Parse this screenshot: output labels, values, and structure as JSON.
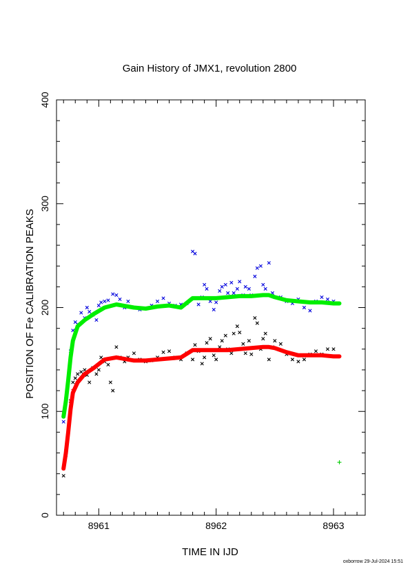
{
  "chart_data": {
    "type": "scatter",
    "title": "Gain History of JMX1, revolution 2800",
    "xlabel": "TIME IN IJD",
    "ylabel": "POSITION OF Fe CALIBRATION PEAKS",
    "xlim": [
      8960.64,
      8963.27
    ],
    "ylim": [
      0,
      400
    ],
    "xticks": [
      8961,
      8962,
      8963
    ],
    "yticks": [
      0,
      100,
      200,
      300,
      400
    ],
    "grid": false,
    "footer": "oxborrow 29-Jul-2024 15:51",
    "series": [
      {
        "kind": "smoothed-line",
        "color": "#00ee00",
        "x": [
          8960.7,
          8960.72,
          8960.74,
          8960.76,
          8960.78,
          8960.82,
          8960.88,
          8960.96,
          8961.05,
          8961.15,
          8961.2,
          8961.3,
          8961.4,
          8961.5,
          8961.6,
          8961.7,
          8961.8,
          8961.9,
          8962.0,
          8962.1,
          8962.2,
          8962.3,
          8962.4,
          8962.45,
          8962.5,
          8962.6,
          8962.7,
          8962.8,
          8962.9,
          8963.0,
          8963.05
        ],
        "y": [
          95,
          110,
          130,
          152,
          168,
          182,
          188,
          194,
          200,
          203,
          202,
          200,
          199,
          201,
          202,
          200,
          209,
          209,
          209,
          210,
          211,
          211,
          212,
          212,
          210,
          207,
          206,
          205,
          205,
          204,
          204
        ]
      },
      {
        "kind": "smoothed-line",
        "color": "#ff0000",
        "x": [
          8960.7,
          8960.72,
          8960.74,
          8960.76,
          8960.78,
          8960.82,
          8960.88,
          8960.96,
          8961.05,
          8961.15,
          8961.2,
          8961.3,
          8961.4,
          8961.5,
          8961.6,
          8961.7,
          8961.8,
          8961.9,
          8962.0,
          8962.1,
          8962.2,
          8962.3,
          8962.4,
          8962.45,
          8962.5,
          8962.6,
          8962.7,
          8962.8,
          8962.9,
          8963.0,
          8963.05
        ],
        "y": [
          45,
          60,
          80,
          102,
          118,
          128,
          136,
          142,
          150,
          152,
          151,
          149,
          149,
          150,
          151,
          152,
          159,
          159,
          159,
          159,
          160,
          161,
          162,
          162,
          161,
          157,
          154,
          154,
          154,
          153,
          153
        ]
      },
      {
        "kind": "points",
        "marker": "x",
        "color": "#0000dd",
        "x": [
          8960.7,
          8960.72,
          8960.74,
          8960.76,
          8960.78,
          8960.8,
          8960.82,
          8960.85,
          8960.88,
          8960.9,
          8960.92,
          8960.95,
          8960.98,
          8961.0,
          8961.02,
          8961.05,
          8961.08,
          8961.12,
          8961.15,
          8961.18,
          8961.22,
          8961.25,
          8961.3,
          8961.35,
          8961.4,
          8961.45,
          8961.5,
          8961.55,
          8961.6,
          8961.65,
          8961.7,
          8961.75,
          8961.8,
          8961.82,
          8961.85,
          8961.88,
          8961.9,
          8961.92,
          8961.95,
          8961.98,
          8962.0,
          8962.03,
          8962.05,
          8962.08,
          8962.1,
          8962.13,
          8962.15,
          8962.18,
          8962.2,
          8962.23,
          8962.25,
          8962.28,
          8962.3,
          8962.33,
          8962.35,
          8962.38,
          8962.4,
          8962.42,
          8962.45,
          8962.48,
          8962.5,
          8962.55,
          8962.6,
          8962.65,
          8962.7,
          8962.75,
          8962.8,
          8962.85,
          8962.9,
          8962.95,
          8963.0
        ],
        "y": [
          90,
          112,
          130,
          158,
          178,
          186,
          184,
          195,
          190,
          200,
          196,
          193,
          188,
          202,
          205,
          206,
          207,
          213,
          212,
          208,
          200,
          206,
          200,
          198,
          199,
          202,
          206,
          209,
          204,
          202,
          203,
          204,
          254,
          252,
          203,
          210,
          222,
          218,
          206,
          198,
          205,
          216,
          220,
          222,
          214,
          224,
          214,
          218,
          225,
          212,
          220,
          218,
          212,
          230,
          238,
          240,
          222,
          218,
          243,
          214,
          210,
          210,
          206,
          204,
          208,
          200,
          197,
          206,
          210,
          208,
          206
        ]
      },
      {
        "kind": "points",
        "marker": "x",
        "color": "#000000",
        "x": [
          8960.7,
          8960.72,
          8960.74,
          8960.76,
          8960.78,
          8960.8,
          8960.82,
          8960.85,
          8960.88,
          8960.9,
          8960.92,
          8960.95,
          8960.98,
          8961.0,
          8961.02,
          8961.05,
          8961.08,
          8961.1,
          8961.12,
          8961.15,
          8961.18,
          8961.22,
          8961.25,
          8961.3,
          8961.35,
          8961.4,
          8961.45,
          8961.5,
          8961.55,
          8961.6,
          8961.65,
          8961.7,
          8961.75,
          8961.8,
          8961.82,
          8961.85,
          8961.88,
          8961.9,
          8961.92,
          8961.95,
          8961.98,
          8962.0,
          8962.03,
          8962.05,
          8962.08,
          8962.1,
          8962.13,
          8962.15,
          8962.18,
          8962.2,
          8962.23,
          8962.25,
          8962.28,
          8962.3,
          8962.33,
          8962.35,
          8962.38,
          8962.4,
          8962.42,
          8962.45,
          8962.48,
          8962.5,
          8962.55,
          8962.6,
          8962.65,
          8962.7,
          8962.75,
          8962.8,
          8962.85,
          8962.9,
          8962.95,
          8963.0
        ],
        "y": [
          38,
          58,
          80,
          110,
          128,
          132,
          136,
          138,
          140,
          135,
          128,
          142,
          136,
          140,
          152,
          148,
          145,
          128,
          120,
          162,
          152,
          148,
          152,
          156,
          150,
          148,
          149,
          152,
          157,
          158,
          152,
          150,
          156,
          150,
          164,
          158,
          146,
          152,
          166,
          170,
          154,
          150,
          162,
          168,
          173,
          160,
          156,
          175,
          182,
          176,
          165,
          156,
          168,
          155,
          190,
          185,
          160,
          170,
          175,
          150,
          162,
          168,
          165,
          155,
          150,
          148,
          150,
          155,
          158,
          155,
          160,
          160
        ]
      },
      {
        "kind": "points",
        "marker": "x",
        "color": "#ff0000",
        "x": [
          8960.7,
          8960.72,
          8960.74,
          8960.76,
          8960.78
        ],
        "y": [
          45,
          62,
          80,
          104,
          120
        ]
      },
      {
        "kind": "points",
        "marker": "plus",
        "color": "#00cc00",
        "x": [
          8963.05
        ],
        "y": [
          51
        ]
      }
    ]
  }
}
